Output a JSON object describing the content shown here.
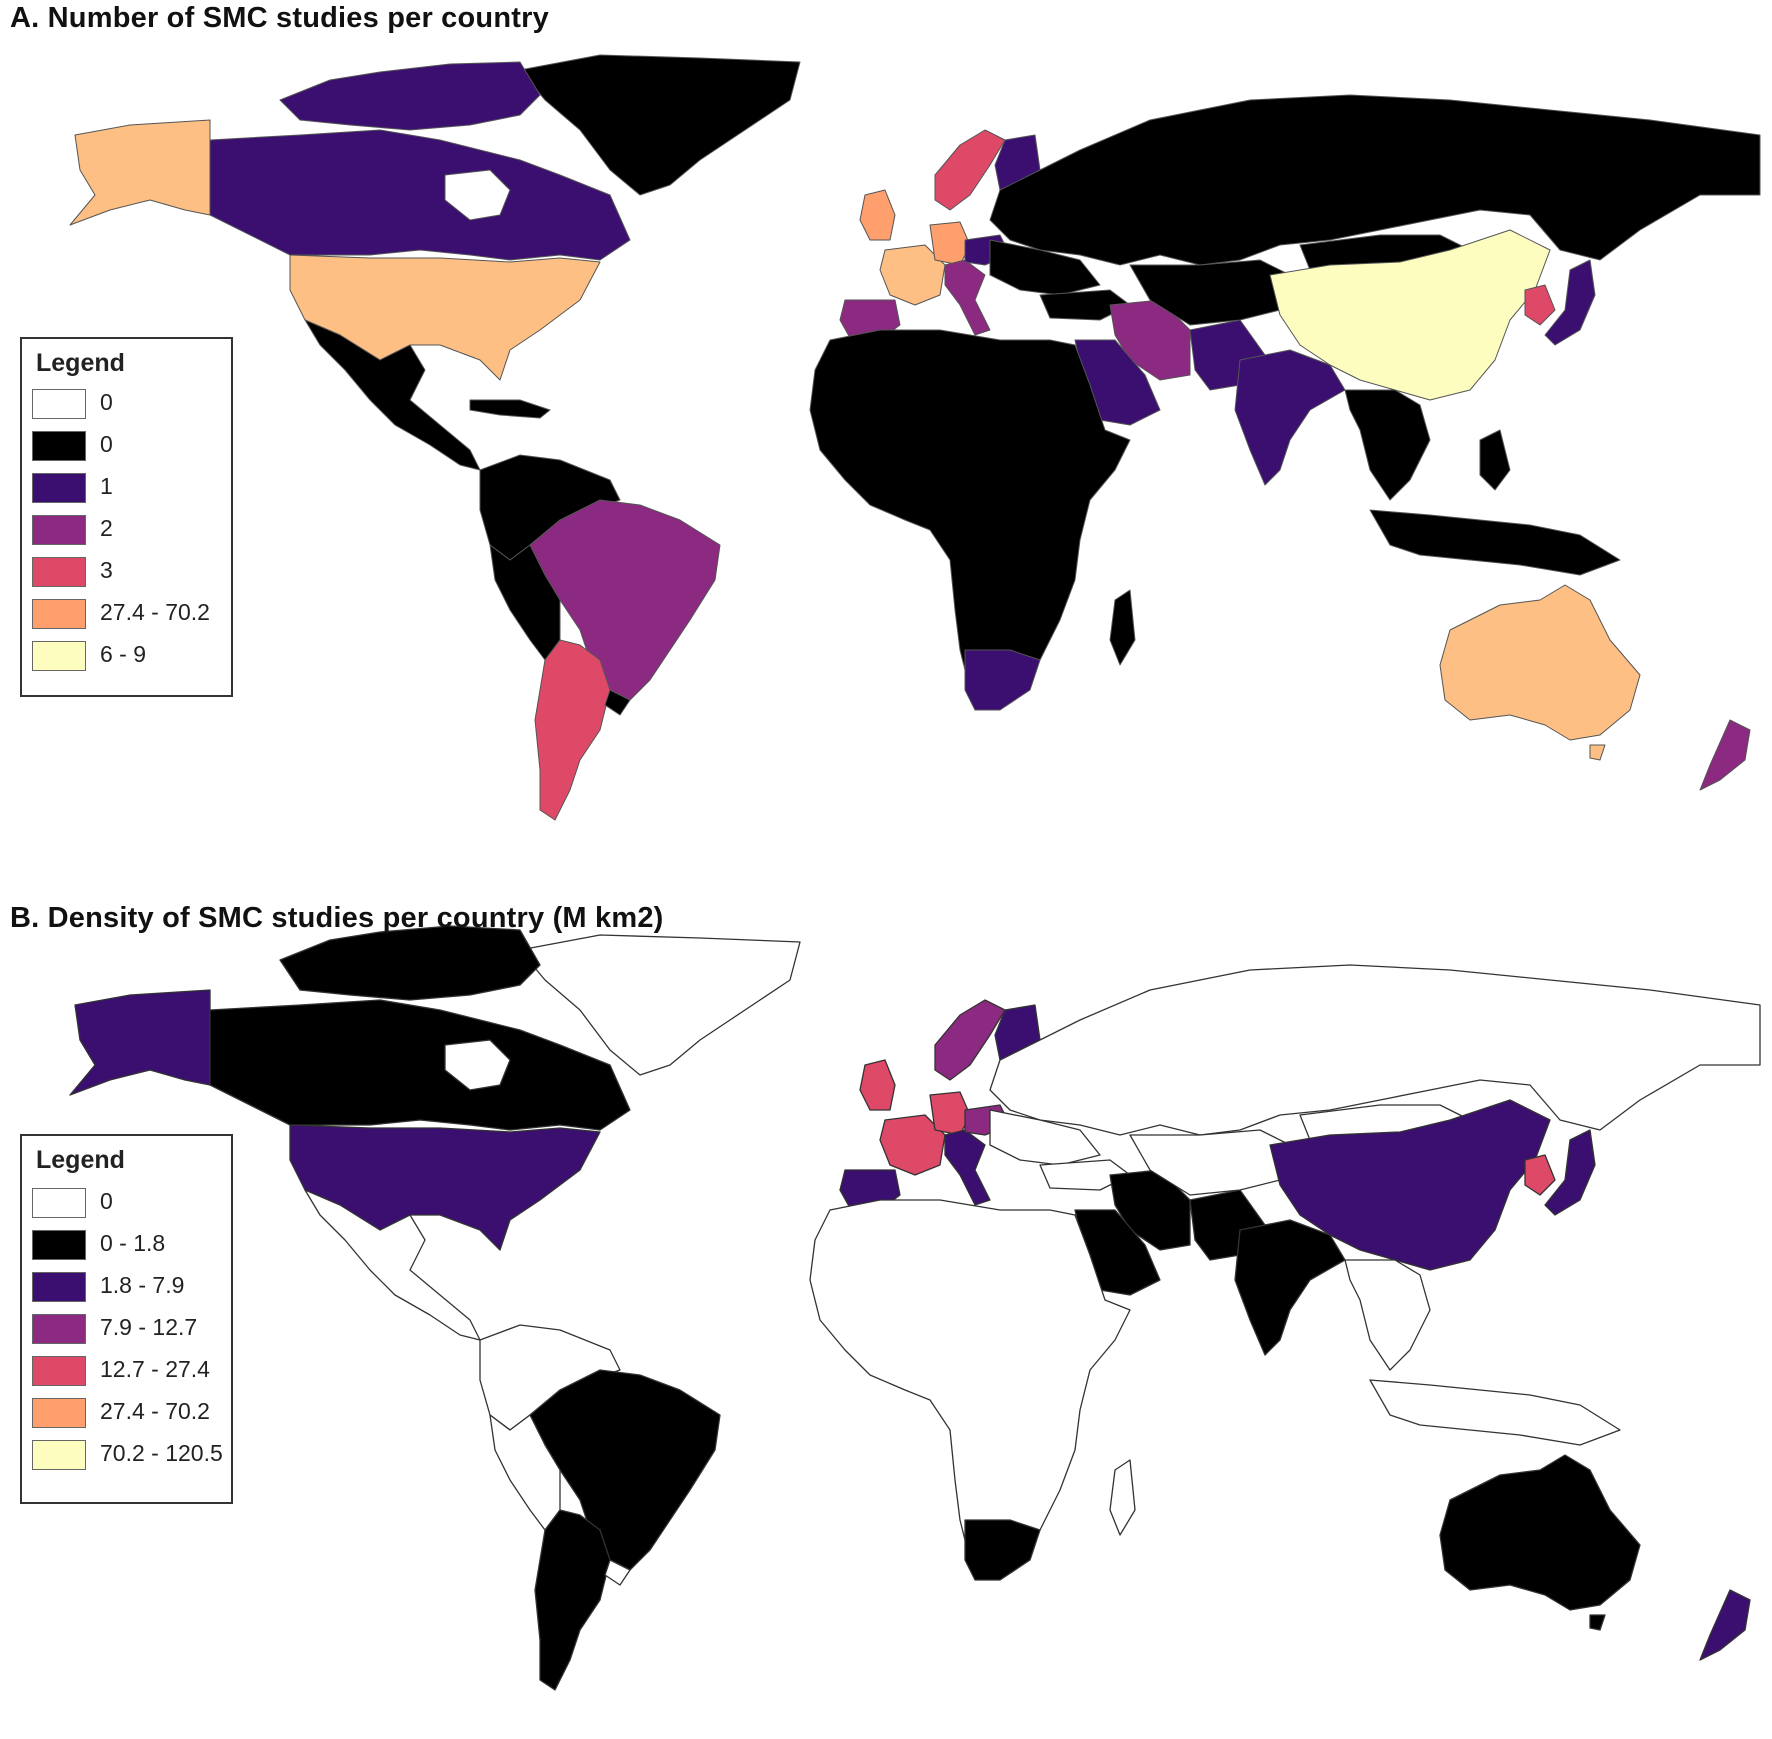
{
  "panel_a": {
    "title": "A. Number of SMC studies per country",
    "legend_title": "Legend",
    "legend": [
      {
        "label": "0",
        "color": "#ffffff"
      },
      {
        "label": "0",
        "color": "#000000"
      },
      {
        "label": "1",
        "color": "#3b0f70"
      },
      {
        "label": "2",
        "color": "#8c2981"
      },
      {
        "label": "3",
        "color": "#de4968"
      },
      {
        "label": "27.4 - 70.2",
        "color": "#fe9f6d"
      },
      {
        "label": "6 - 9",
        "color": "#fcfdbf"
      }
    ]
  },
  "panel_b": {
    "title": "B. Density of SMC studies per country (M km2)",
    "legend_title": "Legend",
    "legend": [
      {
        "label": "0",
        "color": "#ffffff"
      },
      {
        "label": "0 - 1.8",
        "color": "#000000"
      },
      {
        "label": "1.8 - 7.9",
        "color": "#3b0f70"
      },
      {
        "label": "7.9 - 12.7",
        "color": "#8c2981"
      },
      {
        "label": "12.7 - 27.4",
        "color": "#de4968"
      },
      {
        "label": "27.4 - 70.2",
        "color": "#fe9f6d"
      },
      {
        "label": "70.2 - 120.5",
        "color": "#fcfdbf"
      }
    ]
  },
  "colors": {
    "white": "#ffffff",
    "black": "#000000",
    "c1": "#3b0f70",
    "c2": "#8c2981",
    "c3": "#de4968",
    "c4": "#fe9f6d",
    "c5": "#fcfdbf",
    "peach": "#fdbf84"
  }
}
